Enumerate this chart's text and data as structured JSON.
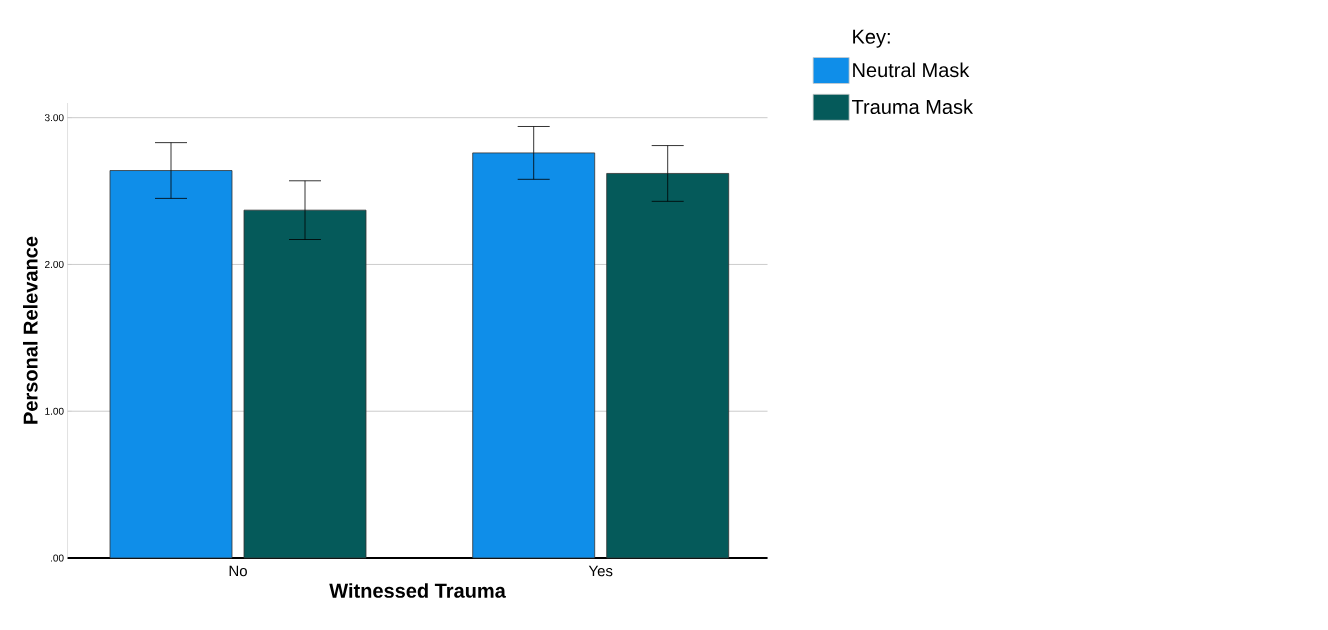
{
  "chart_data": {
    "type": "bar",
    "xlabel": "Witnessed Trauma",
    "ylabel": "Personal Relevance",
    "legend_title": "Key:",
    "categories": [
      "No",
      "Yes"
    ],
    "series": [
      {
        "name": "Neutral Mask",
        "color": "#0f8ee9",
        "values": [
          2.64,
          2.76
        ],
        "errors": [
          0.19,
          0.18
        ]
      },
      {
        "name": "Trauma Mask",
        "color": "#055a5a",
        "values": [
          2.37,
          2.62
        ],
        "errors": [
          0.2,
          0.19
        ]
      }
    ],
    "ylim": [
      0,
      3.1
    ],
    "yticks": [
      {
        "value": 0,
        "label": ".00"
      },
      {
        "value": 1,
        "label": "1.00"
      },
      {
        "value": 2,
        "label": "2.00"
      },
      {
        "value": 3,
        "label": "3.00"
      }
    ],
    "grid": "y",
    "legend": "top right"
  }
}
